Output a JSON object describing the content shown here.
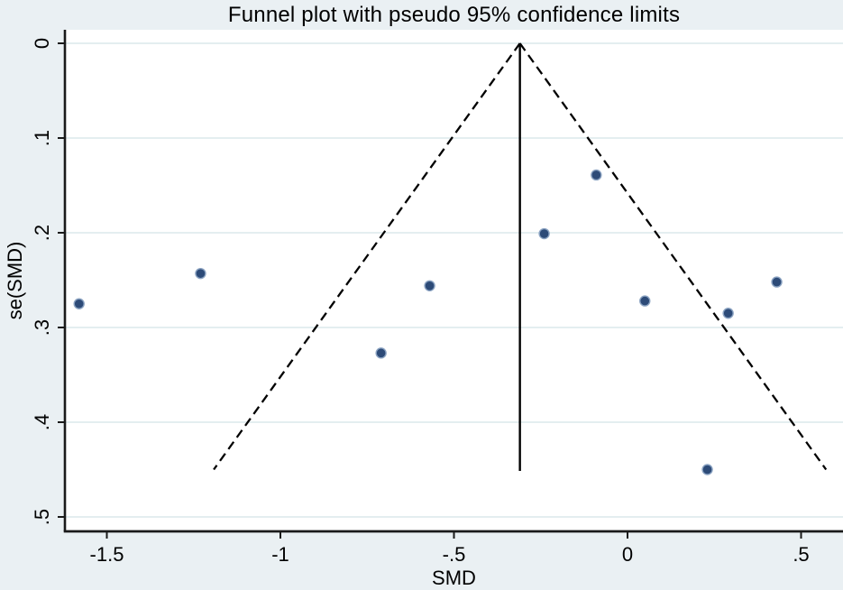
{
  "chart_data": {
    "type": "scatter",
    "title": "Funnel plot with pseudo 95% confidence limits",
    "xlabel": "SMD",
    "ylabel": "se(SMD)",
    "x_axis": {
      "tick_values": [
        -1.5,
        -1,
        -0.5,
        0,
        0.5
      ],
      "tick_labels": [
        "-1.5",
        "-1",
        "-.5",
        "0",
        ".5"
      ],
      "range": [
        -1.62,
        0.62
      ]
    },
    "y_axis": {
      "tick_values": [
        0,
        0.1,
        0.2,
        0.3,
        0.4,
        0.5
      ],
      "tick_labels": [
        "0",
        ".1",
        ".2",
        ".3",
        ".4",
        ".5"
      ],
      "range": [
        0,
        0.515
      ],
      "reversed": true,
      "tick_label_rotation": -90
    },
    "grid": "horizontal-only",
    "legend": "none",
    "points": [
      [
        -1.58,
        0.275
      ],
      [
        -1.23,
        0.243
      ],
      [
        -0.71,
        0.327
      ],
      [
        -0.57,
        0.256
      ],
      [
        -0.24,
        0.201
      ],
      [
        -0.09,
        0.139
      ],
      [
        0.05,
        0.272
      ],
      [
        0.23,
        0.45
      ],
      [
        0.29,
        0.285
      ],
      [
        0.43,
        0.252
      ]
    ],
    "pooled_estimate": -0.31,
    "funnel": {
      "z": 1.96,
      "se_end": 0.45
    },
    "colors": {
      "background": "#eaf0f3",
      "plot_background": "#ffffff",
      "marker_fill": "#2d4b78",
      "marker_edge": "#8ba3c2",
      "funnel_line": "#000000",
      "pooled_line": "#000000",
      "gridline": "#e1ebee",
      "axis": "#1a1a1a",
      "text": "#000000"
    }
  }
}
